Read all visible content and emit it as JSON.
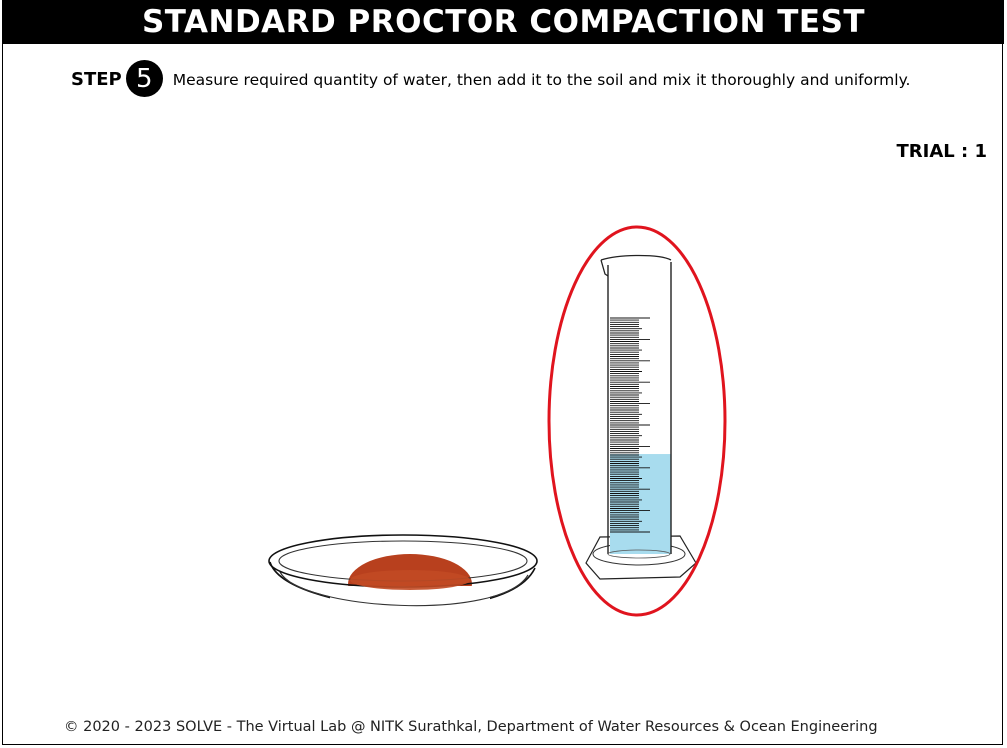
{
  "header": {
    "title": "STANDARD PROCTOR COMPACTION TEST"
  },
  "step": {
    "label": "STEP",
    "number": "5",
    "instruction": "Measure required quantity of water, then add it to the soil and mix it thoroughly and uniformly."
  },
  "trial": {
    "label": "TRIAL : ",
    "value": "1"
  },
  "apparatus": {
    "highlight_color": "#e0141e",
    "water_color": "#a8dcee",
    "soil_color": "#b8401e",
    "cylinder_fill_fraction": 0.42
  },
  "footer": {
    "text": "© 2020 - 2023 SOLVE - The Virtual Lab @ NITK Surathkal, Department of Water Resources & Ocean Engineering"
  }
}
